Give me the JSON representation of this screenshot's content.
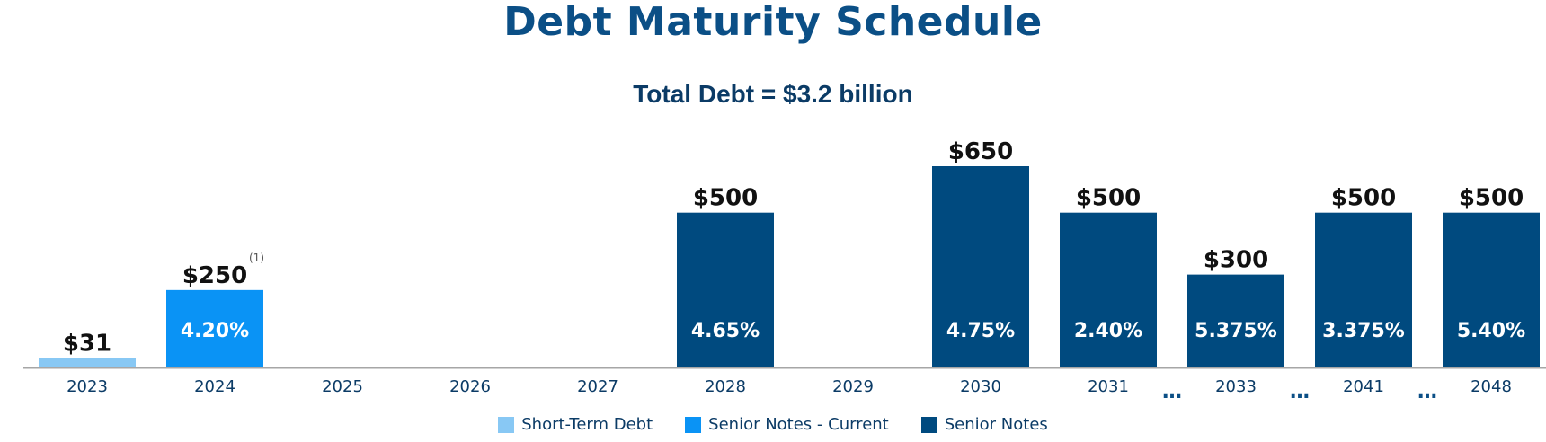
{
  "chart_data": {
    "type": "bar",
    "title": "Debt Maturity Schedule",
    "subtitle": "Total Debt = $3.2 billion",
    "categories": [
      "2023",
      "2024",
      "2025",
      "2026",
      "2027",
      "2028",
      "2029",
      "2030",
      "2031",
      "2033",
      "2041",
      "2048"
    ],
    "values": [
      31,
      250,
      0,
      0,
      0,
      500,
      0,
      650,
      500,
      300,
      500,
      500
    ],
    "value_labels": [
      "$31",
      "$250",
      "",
      "",
      "",
      "$500",
      "",
      "$650",
      "$500",
      "$300",
      "$500",
      "$500"
    ],
    "rate_labels": [
      "",
      "4.20%",
      "",
      "",
      "",
      "4.65%",
      "",
      "4.75%",
      "2.40%",
      "5.375%",
      "3.375%",
      "5.40%"
    ],
    "bar_series": [
      "Short-Term Debt",
      "Senior Notes - Current",
      "",
      "",
      "",
      "Senior Notes",
      "",
      "Senior Notes",
      "Senior Notes",
      "Senior Notes",
      "Senior Notes",
      "Senior Notes"
    ],
    "footnote_marker": "(1)",
    "footnote_category": "2024",
    "gap_marker": "…",
    "gaps_after": [
      "2031",
      "2033",
      "2041"
    ],
    "ylim": [
      0,
      650
    ],
    "grid": false,
    "legend_position": "bottom",
    "series": [
      {
        "name": "Short-Term Debt",
        "color": "#88c8f4"
      },
      {
        "name": "Senior Notes - Current",
        "color": "#0a93f5"
      },
      {
        "name": "Senior Notes",
        "color": "#004a7f"
      }
    ]
  }
}
